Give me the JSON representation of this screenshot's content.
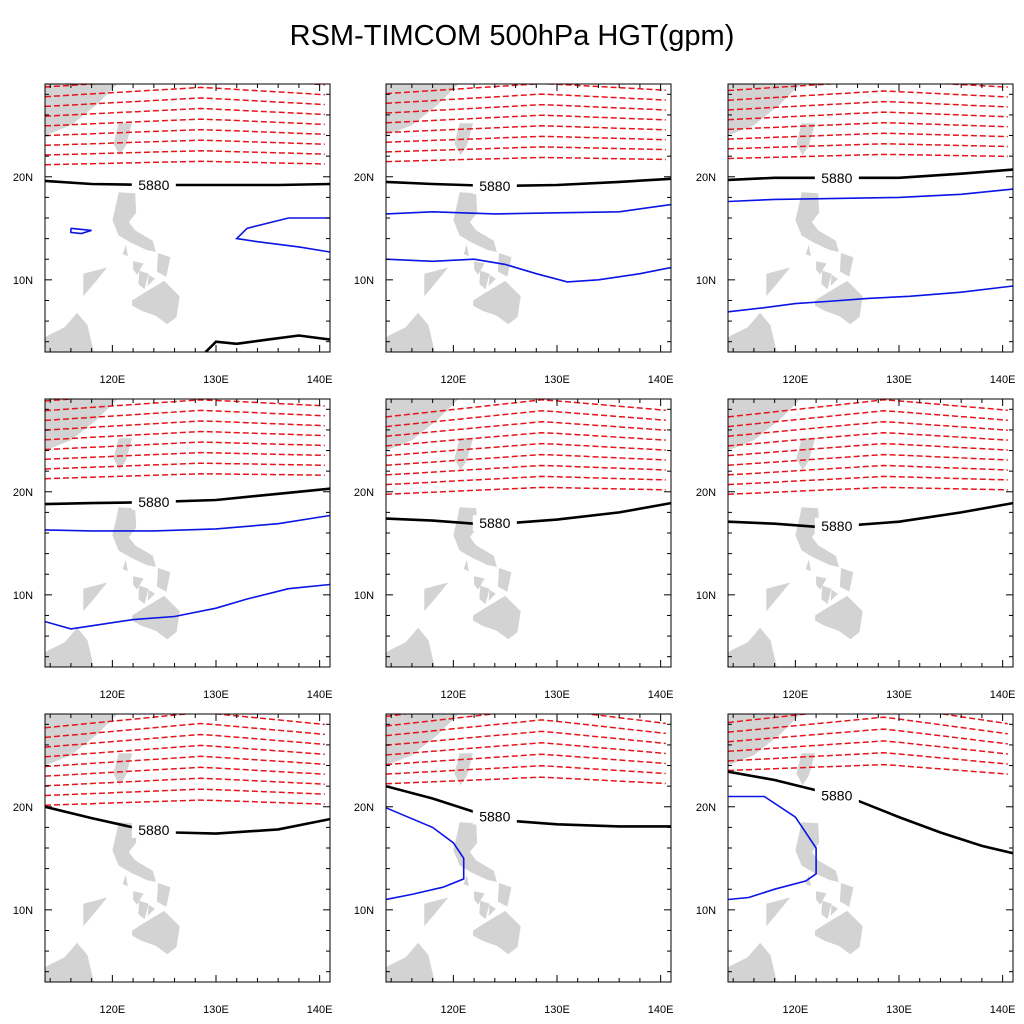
{
  "title": "RSM-TIMCOM 500hPa HGT(gpm)",
  "colors": {
    "land": "#d3d3d3",
    "height_contours": "#e8141b",
    "ridge_contour": "#000000",
    "low_contours": "#0a14e6",
    "frame": "#000000"
  },
  "chart_data": {
    "type": "contour-map-grid",
    "title": "RSM-TIMCOM 500hPa HGT(gpm)",
    "x_ticks": [
      "120E",
      "130E",
      "140E"
    ],
    "y_ticks": [
      "10N",
      "20N"
    ],
    "xlim": [
      113.5,
      141
    ],
    "ylim": [
      3,
      29
    ],
    "contour_label": "5880",
    "panels": [
      {
        "ridge_label": "5880",
        "ridge": [
          [
            113.5,
            19.6
          ],
          [
            118,
            19.3
          ],
          [
            124,
            19.2
          ],
          [
            130,
            19.2
          ],
          [
            136,
            19.2
          ],
          [
            141,
            19.3
          ]
        ],
        "ridge_extra": [
          [
            129,
            3
          ],
          [
            130,
            4
          ],
          [
            132,
            3.8
          ],
          [
            135,
            4.2
          ],
          [
            138,
            4.6
          ],
          [
            141,
            4.2
          ]
        ],
        "blue": [
          [
            [
              141,
              16
            ],
            [
              137,
              16
            ],
            [
              133,
              15
            ],
            [
              132,
              14
            ],
            [
              134,
              13.7
            ],
            [
              138,
              13.2
            ],
            [
              141,
              12.7
            ]
          ],
          [
            [
              116,
              15
            ],
            [
              118,
              14.8
            ],
            [
              117,
              14.5
            ],
            [
              116,
              14.6
            ],
            [
              116,
              15
            ]
          ]
        ],
        "red_base": 21.2,
        "red_tilt": 0.0,
        "red_curve": 0.6
      },
      {
        "ridge_label": "5880",
        "ridge": [
          [
            113.5,
            19.5
          ],
          [
            118,
            19.3
          ],
          [
            124,
            19.1
          ],
          [
            130,
            19.2
          ],
          [
            136,
            19.5
          ],
          [
            141,
            19.8
          ]
        ],
        "blue": [
          [
            [
              113.5,
              16.4
            ],
            [
              118,
              16.6
            ],
            [
              124,
              16.4
            ],
            [
              130,
              16.5
            ],
            [
              136,
              16.6
            ],
            [
              141,
              17.3
            ]
          ],
          [
            [
              113.5,
              12
            ],
            [
              118,
              11.8
            ],
            [
              122,
              12
            ],
            [
              125,
              11.5
            ],
            [
              128,
              10.6
            ],
            [
              131,
              9.8
            ],
            [
              134,
              10
            ],
            [
              138,
              10.6
            ],
            [
              141,
              11.2
            ]
          ]
        ],
        "red_base": 21.5,
        "red_tilt": 0.05,
        "red_curve": 0.6
      },
      {
        "ridge_label": "5880",
        "ridge": [
          [
            113.5,
            19.7
          ],
          [
            118,
            19.9
          ],
          [
            124,
            19.9
          ],
          [
            130,
            19.9
          ],
          [
            136,
            20.3
          ],
          [
            141,
            20.7
          ]
        ],
        "blue": [
          [
            [
              113.5,
              17.6
            ],
            [
              118,
              17.8
            ],
            [
              124,
              17.9
            ],
            [
              130,
              18
            ],
            [
              136,
              18.3
            ],
            [
              141,
              18.8
            ]
          ],
          [
            [
              113.5,
              6.9
            ],
            [
              117,
              7.3
            ],
            [
              120,
              7.7
            ],
            [
              123,
              7.9
            ],
            [
              127,
              8.2
            ],
            [
              131,
              8.4
            ],
            [
              136,
              8.8
            ],
            [
              141,
              9.4
            ]
          ]
        ],
        "red_base": 21.8,
        "red_tilt": 0.05,
        "red_curve": 0.6
      },
      {
        "ridge_label": "5880",
        "ridge": [
          [
            113.5,
            18.8
          ],
          [
            118,
            18.9
          ],
          [
            124,
            19
          ],
          [
            130,
            19.2
          ],
          [
            136,
            19.8
          ],
          [
            141,
            20.3
          ]
        ],
        "blue": [
          [
            [
              113.5,
              16.3
            ],
            [
              118,
              16.2
            ],
            [
              124,
              16.2
            ],
            [
              130,
              16.4
            ],
            [
              136,
              16.9
            ],
            [
              141,
              17.7
            ]
          ],
          [
            [
              113.5,
              7.4
            ],
            [
              116,
              6.7
            ],
            [
              118,
              7
            ],
            [
              122,
              7.6
            ],
            [
              126,
              7.9
            ],
            [
              130,
              8.7
            ],
            [
              133,
              9.6
            ],
            [
              137,
              10.6
            ],
            [
              141,
              11
            ]
          ]
        ],
        "red_base": 21.3,
        "red_tilt": 0.1,
        "red_curve": 0.6
      },
      {
        "ridge_label": "5880",
        "ridge": [
          [
            113.5,
            17.4
          ],
          [
            118,
            17.2
          ],
          [
            122,
            16.9
          ],
          [
            126,
            17
          ],
          [
            130,
            17.3
          ],
          [
            136,
            18
          ],
          [
            141,
            18.9
          ]
        ],
        "blue": [],
        "red_base": 19.8,
        "red_tilt": 0.12,
        "red_curve": 0.9
      },
      {
        "ridge_label": "5880",
        "ridge": [
          [
            113.5,
            17.1
          ],
          [
            118,
            16.9
          ],
          [
            122,
            16.6
          ],
          [
            126,
            16.8
          ],
          [
            130,
            17.1
          ],
          [
            136,
            18
          ],
          [
            141,
            18.9
          ]
        ],
        "blue": [],
        "red_base": 19.8,
        "red_tilt": 0.12,
        "red_curve": 0.9
      },
      {
        "ridge_label": "5880",
        "ridge": [
          [
            113.5,
            20
          ],
          [
            118,
            18.9
          ],
          [
            122,
            18
          ],
          [
            126,
            17.5
          ],
          [
            130,
            17.4
          ],
          [
            136,
            17.8
          ],
          [
            141,
            18.8
          ]
        ],
        "blue": [],
        "red_base": 20.2,
        "red_tilt": 0.0,
        "red_curve": 0.9
      },
      {
        "ridge_label": "5880",
        "ridge": [
          [
            113.5,
            22
          ],
          [
            118,
            20.8
          ],
          [
            122,
            19.5
          ],
          [
            126,
            18.6
          ],
          [
            130,
            18.3
          ],
          [
            136,
            18.1
          ],
          [
            141,
            18.1
          ]
        ],
        "blue": [
          [
            [
              113.5,
              19.9
            ],
            [
              118,
              18
            ],
            [
              120,
              16.5
            ],
            [
              121,
              15
            ],
            [
              121,
              13
            ],
            [
              119,
              12.2
            ],
            [
              116,
              11.5
            ],
            [
              113.5,
              11
            ]
          ]
        ],
        "red_base": 22.3,
        "red_tilt": -0.05,
        "red_curve": 1.3
      },
      {
        "ridge_label": "5880",
        "ridge": [
          [
            113.5,
            23.4
          ],
          [
            118,
            22.6
          ],
          [
            122,
            21.6
          ],
          [
            126,
            20.6
          ],
          [
            130,
            19
          ],
          [
            134,
            17.5
          ],
          [
            138,
            16.2
          ],
          [
            141,
            15.5
          ]
        ],
        "blue": [
          [
            [
              113.5,
              21
            ],
            [
              117,
              21
            ],
            [
              120,
              19
            ],
            [
              122,
              16
            ],
            [
              122,
              13.5
            ],
            [
              121,
              12.8
            ],
            [
              118,
              12
            ],
            [
              115.5,
              11.2
            ],
            [
              113.5,
              11
            ]
          ]
        ],
        "red_base": 23.6,
        "red_tilt": -0.2,
        "red_curve": 1.6
      }
    ]
  }
}
